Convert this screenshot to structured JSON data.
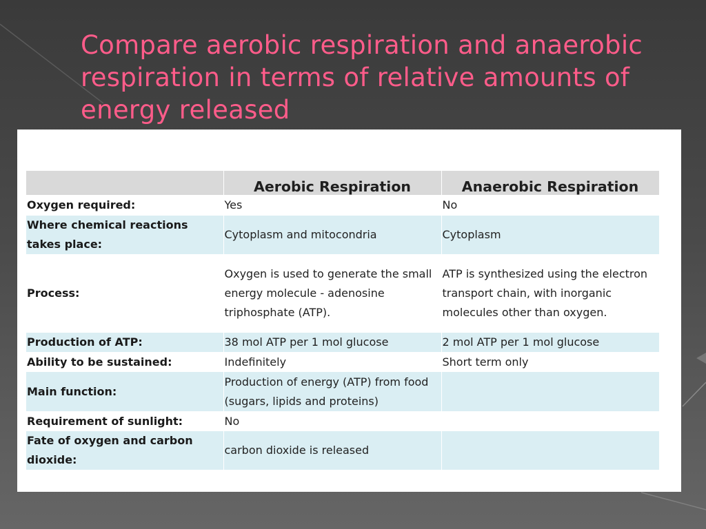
{
  "slide": {
    "title": "Compare aerobic respiration and anaerobic respiration in terms of relative amounts of energy released"
  },
  "table": {
    "headers": [
      "",
      "Aerobic Respiration",
      "Anaerobic Respiration"
    ],
    "rows": [
      {
        "label": "Oxygen required:",
        "aerobic": "Yes",
        "anaerobic": "No"
      },
      {
        "label": "Where chemical reactions takes place:",
        "aerobic": "Cytoplasm and mitocondria",
        "anaerobic": "Cytoplasm"
      },
      {
        "label": "Process:",
        "aerobic": "Oxygen is used to generate the small energy molecule - adenosine triphosphate (ATP).",
        "anaerobic": "ATP is synthesized using the electron transport chain, with inorganic molecules other than oxygen."
      },
      {
        "label": "Production of ATP:",
        "aerobic": "38 mol ATP per 1 mol glucose",
        "anaerobic": "2 mol ATP per 1 mol glucose"
      },
      {
        "label": "Ability to be sustained:",
        "aerobic": "Indefinitely",
        "anaerobic": "Short term only"
      },
      {
        "label": "Main function:",
        "aerobic": "Production of energy (ATP) from food (sugars, lipids and proteins)",
        "anaerobic": ""
      },
      {
        "label": "Requirement of sunlight:",
        "aerobic": "No",
        "anaerobic": ""
      },
      {
        "label": "Fate of oxygen and carbon dioxide:",
        "aerobic": "carbon dioxide is released",
        "anaerobic": ""
      }
    ]
  },
  "colors": {
    "title": "#ff5c8a",
    "header_fill": "#d9d9d9",
    "row_shade": "#daeef3"
  }
}
